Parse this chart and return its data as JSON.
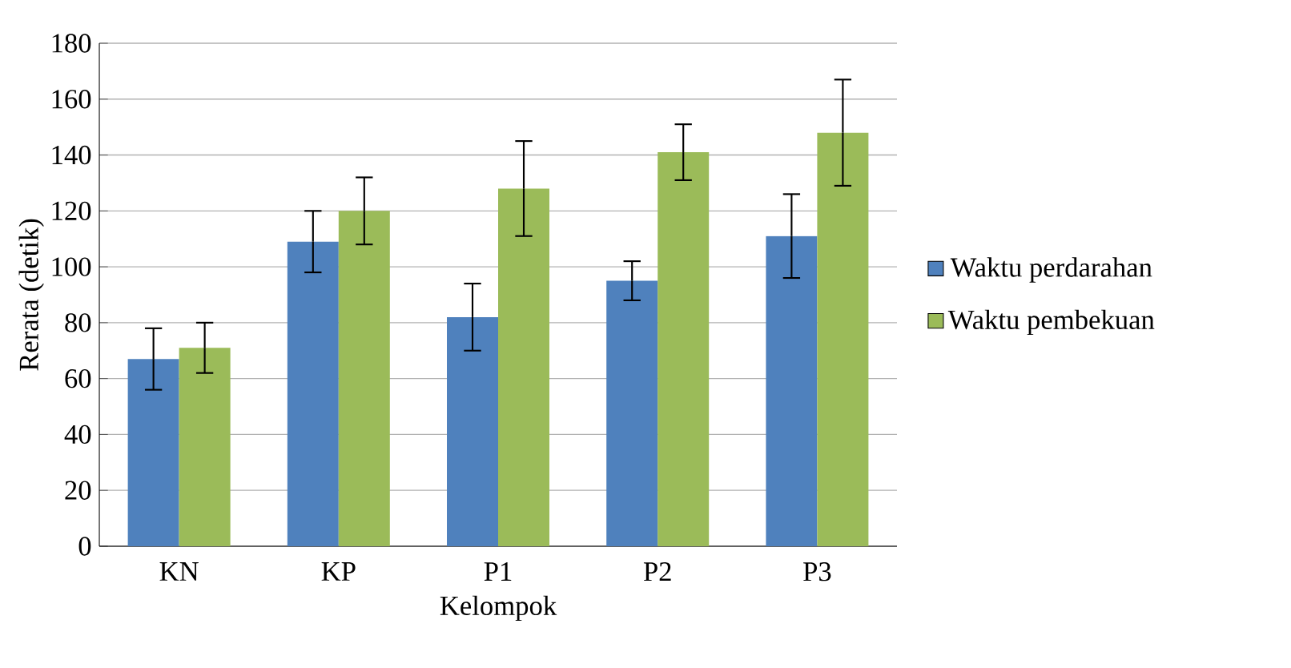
{
  "chart_data": {
    "type": "bar",
    "xlabel": "Kelompok",
    "ylabel": "Rerata (detik)",
    "categories": [
      "KN",
      "KP",
      "P1",
      "P2",
      "P3"
    ],
    "series": [
      {
        "name": "Waktu perdarahan",
        "color": "#4f81bd",
        "values": [
          67,
          109,
          82,
          95,
          111
        ],
        "errors": [
          11,
          11,
          12,
          7,
          15
        ]
      },
      {
        "name": "Waktu pembekuan",
        "color": "#9bbb59",
        "values": [
          71,
          120,
          128,
          141,
          148
        ],
        "errors": [
          9,
          12,
          17,
          10,
          19
        ]
      }
    ],
    "ylim": [
      0,
      180
    ],
    "yticks": [
      0,
      20,
      40,
      60,
      80,
      100,
      120,
      140,
      160,
      180
    ],
    "grid": "y",
    "legend": "right"
  }
}
